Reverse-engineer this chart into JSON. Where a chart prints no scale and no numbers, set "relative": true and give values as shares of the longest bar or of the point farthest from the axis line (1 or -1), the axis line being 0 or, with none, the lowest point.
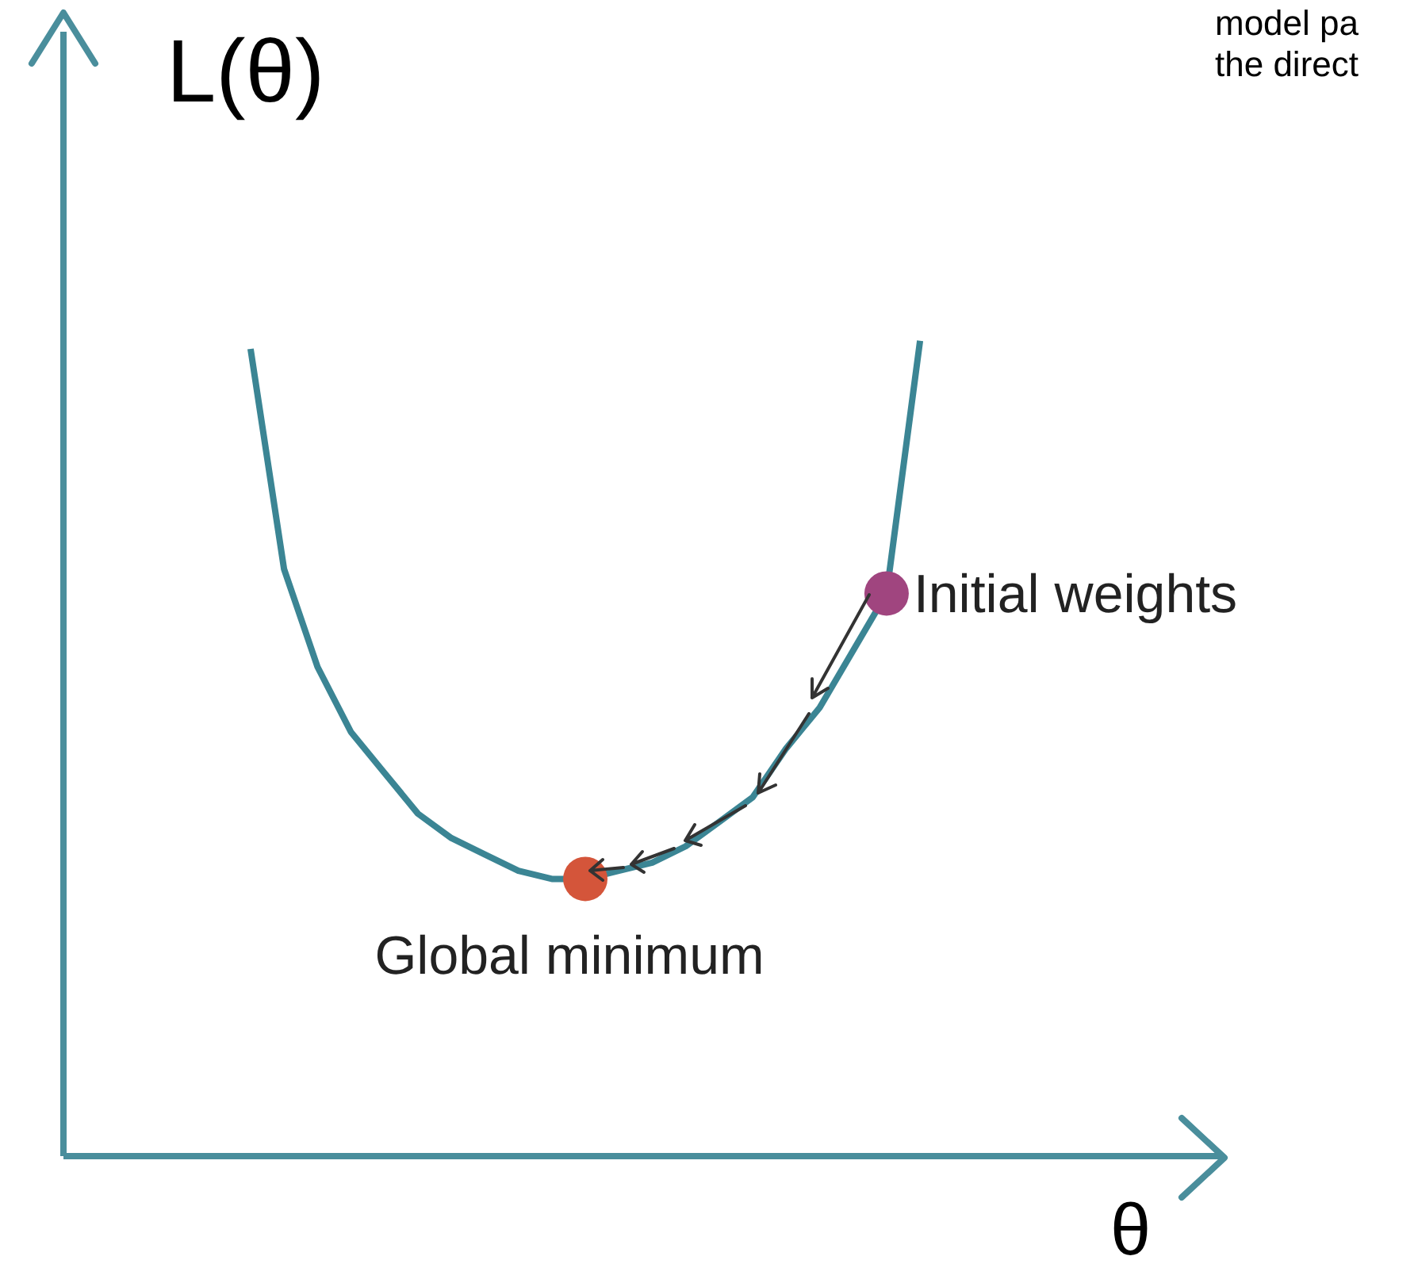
{
  "chart_data": {
    "type": "line",
    "relative": true,
    "ylabel": "L(θ)",
    "xlabel": "θ",
    "annotations": [
      "Initial weights",
      {
        "text": "Global minimum",
        "y": 0.34
      },
      "model pa",
      "the direct"
    ],
    "categories": [
      null,
      null,
      null,
      null,
      null,
      null,
      null,
      null,
      null,
      null,
      null,
      null,
      null,
      null,
      null,
      null,
      null,
      null,
      null,
      null,
      null
    ],
    "series": [
      {
        "color": "#3b8594",
        "values": [
          0.99,
          0.72,
          0.6,
          0.52,
          0.47,
          0.42,
          0.39,
          0.37,
          0.35,
          0.34,
          0.34,
          0.35,
          0.36,
          0.38,
          0.41,
          0.44,
          0.5,
          0.55,
          0.62,
          0.69,
          1.0
        ]
      }
    ],
    "marker": "none",
    "grid": false,
    "legend": false
  }
}
